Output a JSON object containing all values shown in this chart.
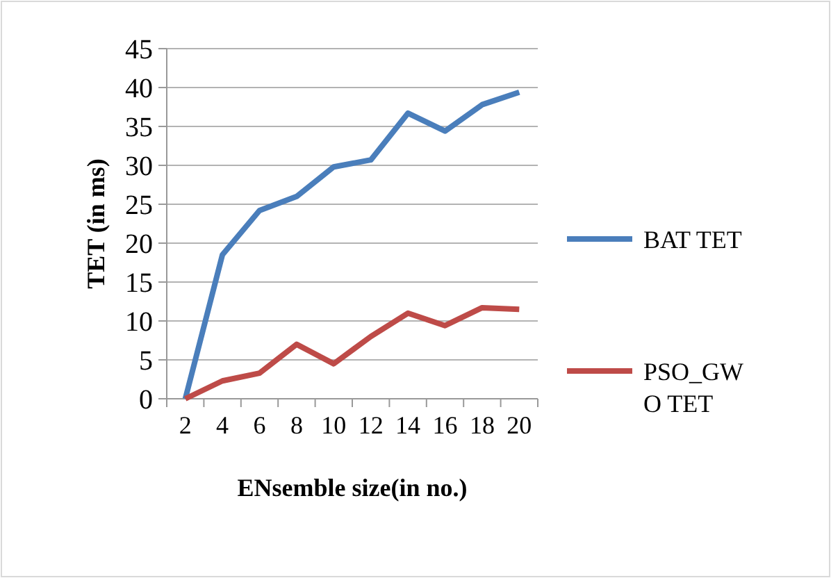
{
  "chart_data": {
    "type": "line",
    "xlabel": "ENsemble size(in no.)",
    "ylabel": "TET (in ms)",
    "categories": [
      "2",
      "4",
      "6",
      "8",
      "10",
      "12",
      "14",
      "16",
      "18",
      "20"
    ],
    "series": [
      {
        "name": "BAT TET",
        "color": "#4a7ebb",
        "values": [
          0,
          18.5,
          24.2,
          26,
          29.8,
          30.7,
          36.7,
          34.4,
          37.8,
          39.4
        ]
      },
      {
        "name": "PSO_GWO TET",
        "color": "#be4b48",
        "values": [
          0,
          2.3,
          3.3,
          7,
          4.5,
          8,
          11,
          9.4,
          11.7,
          11.5
        ]
      }
    ],
    "ylim": [
      0,
      45
    ],
    "yticks": [
      0,
      5,
      10,
      15,
      20,
      25,
      30,
      35,
      40,
      45
    ],
    "grid": "y",
    "legend": "right",
    "marker": "none",
    "line_style": "solid"
  }
}
